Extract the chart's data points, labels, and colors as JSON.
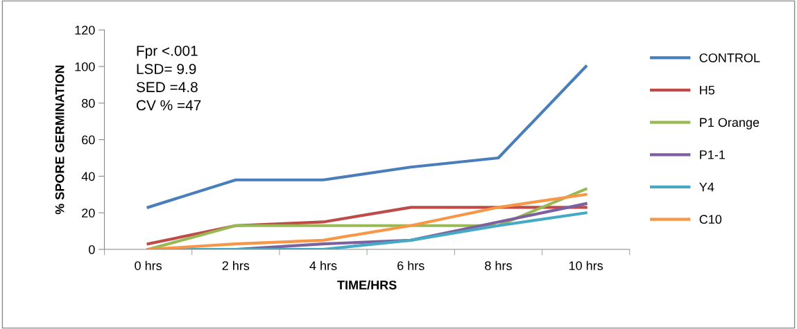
{
  "chart_data": {
    "type": "line",
    "xlabel": "TIME/HRS",
    "ylabel": "% SPORE GERMINATION",
    "categories": [
      "0 hrs",
      "2 hrs",
      "4 hrs",
      "6 hrs",
      "8 hrs",
      "10 hrs"
    ],
    "series": [
      {
        "name": "CONTROL",
        "color": "#4a7ebb",
        "values": [
          23,
          38,
          38,
          45,
          50,
          100
        ]
      },
      {
        "name": "H5",
        "color": "#be4b48",
        "values": [
          3,
          13,
          15,
          23,
          23,
          23
        ]
      },
      {
        "name": "P1 Orange",
        "color": "#98b954",
        "values": [
          0,
          13,
          13,
          13,
          13,
          33
        ]
      },
      {
        "name": "P1-1",
        "color": "#7d60a0",
        "values": [
          0,
          0,
          3,
          5,
          15,
          25
        ]
      },
      {
        "name": "Y4",
        "color": "#46aac5",
        "values": [
          0,
          0,
          0,
          5,
          13,
          20
        ]
      },
      {
        "name": "C10",
        "color": "#f79646",
        "values": [
          0,
          3,
          5,
          13,
          23,
          30
        ]
      }
    ],
    "ylim": [
      0,
      120
    ],
    "yticks": [
      0,
      20,
      40,
      60,
      80,
      100,
      120
    ],
    "annotations": [
      "Fpr <.001\nLSD= 9.9\nSED =4.8\nCV % =47"
    ],
    "legend": "right",
    "grid": false,
    "marker": "none",
    "line_style": "solid"
  }
}
